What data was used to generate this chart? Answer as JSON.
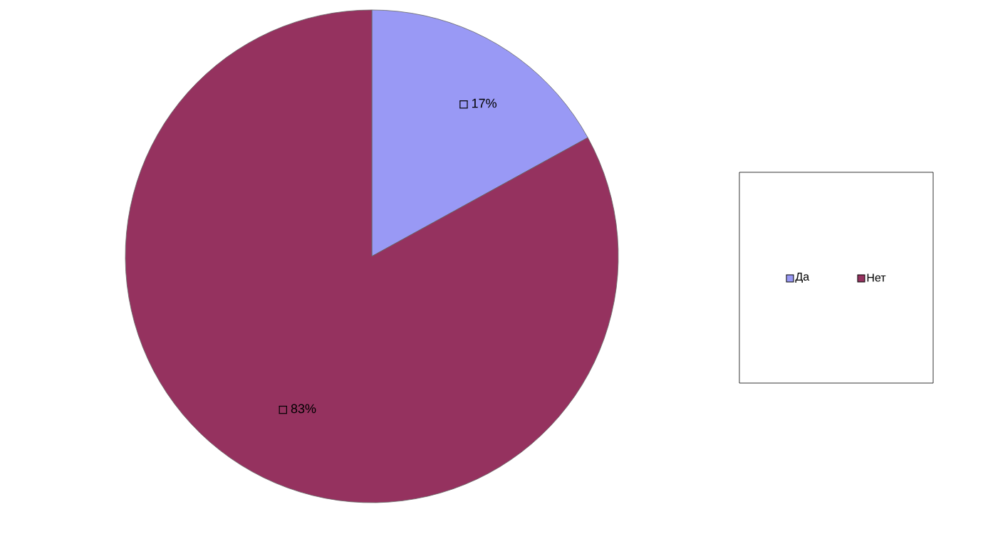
{
  "chart_data": {
    "type": "pie",
    "categories": [
      "Да",
      "Нет"
    ],
    "values": [
      17,
      83
    ],
    "colors": [
      "#9999f5",
      "#95325f"
    ],
    "data_labels": true,
    "value_labels": [
      "17%",
      "83%"
    ],
    "legend": "right"
  }
}
